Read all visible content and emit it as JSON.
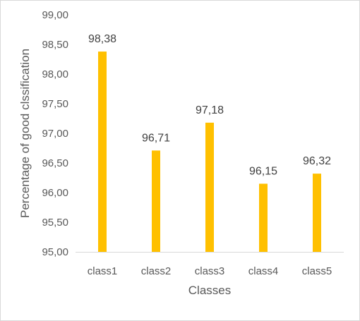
{
  "chart_data": {
    "type": "bar",
    "title": "",
    "xlabel": "Classes",
    "ylabel": "Percentage of good clssification",
    "categories": [
      "class1",
      "class2",
      "class3",
      "class4",
      "class5"
    ],
    "values": [
      98.38,
      96.71,
      97.18,
      96.15,
      96.32
    ],
    "data_labels": [
      "98,38",
      "96,71",
      "97,18",
      "96,15",
      "96,32"
    ],
    "ylim": [
      95,
      99
    ],
    "yticks": [
      95,
      95.5,
      96,
      96.5,
      97,
      97.5,
      98,
      98.5,
      99
    ],
    "ytick_labels": [
      "95,00",
      "95,50",
      "96,00",
      "96,50",
      "97,00",
      "97,50",
      "98,00",
      "98,50",
      "99,00"
    ],
    "grid": false,
    "legend": "none",
    "bar_color": "#FFC000",
    "axis_color": "#d9d9d9"
  }
}
